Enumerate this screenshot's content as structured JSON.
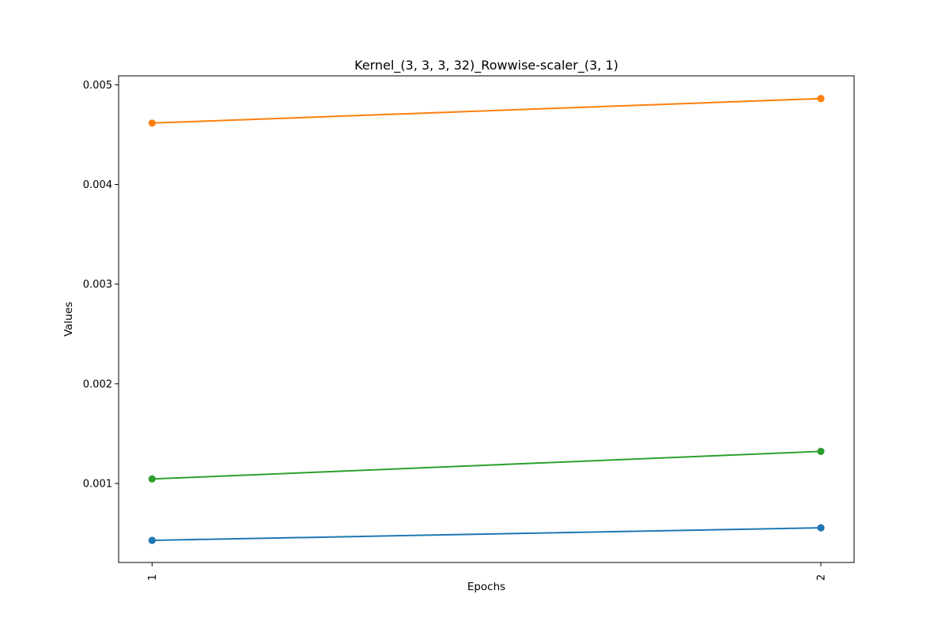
{
  "chart_data": {
    "type": "line",
    "title": "Kernel_(3, 3, 3, 32)_Rowwise-scaler_(3, 1)",
    "xlabel": "Epochs",
    "ylabel": "Values",
    "x": [
      1,
      2
    ],
    "x_tick_labels": [
      "1",
      "2"
    ],
    "x_tick_rotation": "vertical",
    "ylim": [
      0.000207,
      0.00509
    ],
    "y_ticks": [
      0.001,
      0.002,
      0.003,
      0.004,
      0.005
    ],
    "y_tick_labels": [
      "0.001",
      "0.002",
      "0.003",
      "0.004",
      "0.005"
    ],
    "grid": false,
    "legend": "none",
    "marker": "circle",
    "series": [
      {
        "color": "#1f77b4",
        "values": [
          0.000429,
          0.000555
        ]
      },
      {
        "color": "#ff7f0e",
        "values": [
          0.004616,
          0.004862
        ]
      },
      {
        "color": "#2ca02c",
        "values": [
          0.001045,
          0.001322
        ]
      }
    ]
  }
}
